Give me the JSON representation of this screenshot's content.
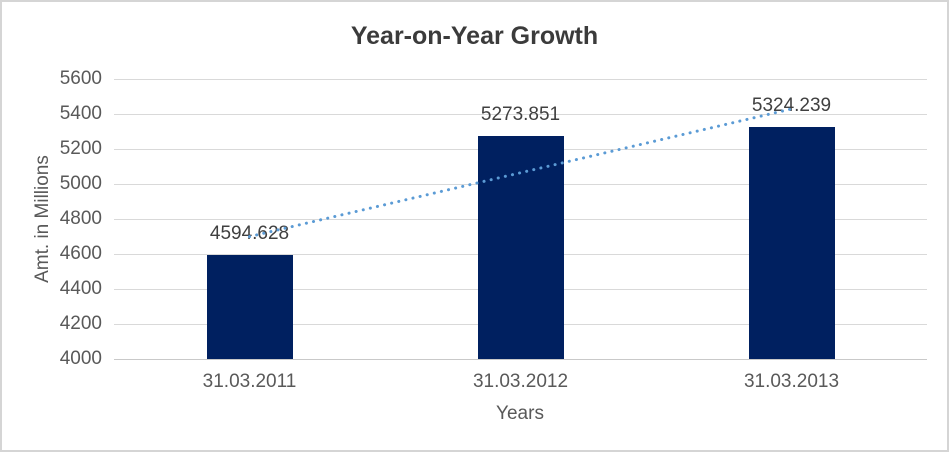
{
  "chart_data": {
    "type": "bar",
    "title": "Year-on-Year Growth",
    "categories": [
      "31.03.2011",
      "31.03.2012",
      "31.03.2013"
    ],
    "series": [
      {
        "name": "Amt. in Millions",
        "values": [
          4594.628,
          5273.851,
          5324.239
        ]
      }
    ],
    "data_labels": [
      "4594.628",
      "5273.851",
      "5324.239"
    ],
    "xlabel": "Years",
    "ylabel": "Amt. in Millions",
    "ylim": [
      4000,
      5600
    ],
    "ytick_step": 200,
    "yticks": [
      4000,
      4200,
      4400,
      4600,
      4800,
      5000,
      5200,
      5400,
      5600
    ],
    "grid": true,
    "legend": "none",
    "trendline": {
      "type": "linear",
      "series": "Amt. in Millions",
      "style": "dotted"
    },
    "colors": {
      "bar": "#002060",
      "trendline": "#5b9bd5",
      "gridline": "#d9d9d9",
      "title_text": "#3b3b3b",
      "axis_text": "#595959",
      "label_text": "#404040",
      "background": "#ffffff",
      "frame_border": "#d5d5d5"
    }
  }
}
